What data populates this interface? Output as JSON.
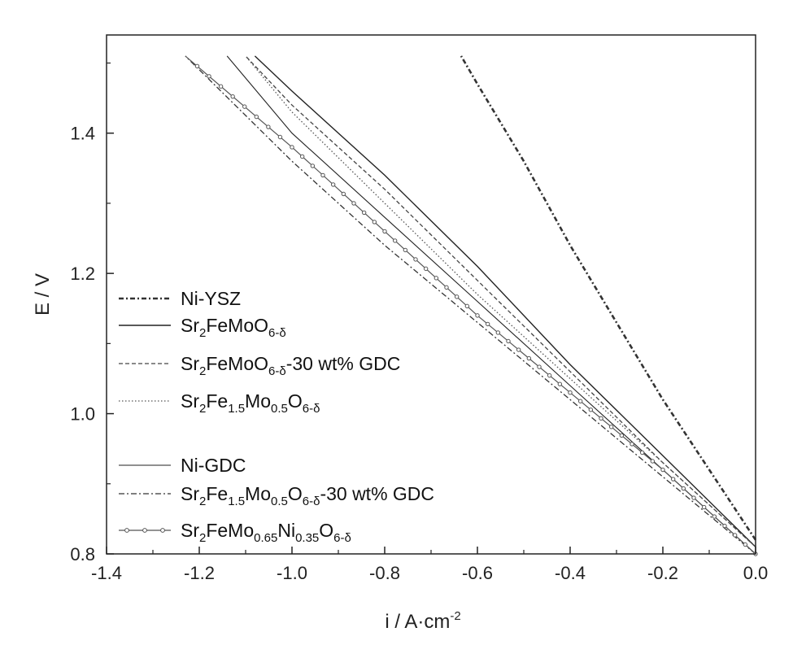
{
  "chart_data": {
    "type": "line",
    "xlabel": "i / A·cm",
    "xlabel_sup": "-2",
    "ylabel": "E / V",
    "xlim": [
      -1.4,
      0.0
    ],
    "ylim": [
      0.8,
      1.54
    ],
    "xticks": [
      -1.4,
      -1.2,
      -1.0,
      -0.8,
      -0.6,
      -0.4,
      -0.2,
      0.0
    ],
    "xtick_labels": [
      "-1.4",
      "-1.2",
      "-1.0",
      "-0.8",
      "-0.6",
      "-0.4",
      "-0.2",
      "0.0"
    ],
    "yticks": [
      0.8,
      1.0,
      1.2,
      1.4
    ],
    "ytick_labels": [
      "0.8",
      "1.0",
      "1.2",
      "1.4"
    ],
    "grid": false,
    "legend_position": "left-middle",
    "series": [
      {
        "name": "Ni-YSZ",
        "label_parts": [
          {
            "t": "Ni-YSZ"
          }
        ],
        "style": "dash-dot-bold",
        "color": "#333333",
        "x": [
          0.0,
          -0.1,
          -0.2,
          -0.3,
          -0.4,
          -0.5,
          -0.6,
          -0.635
        ],
        "y": [
          0.82,
          0.92,
          1.02,
          1.13,
          1.24,
          1.36,
          1.47,
          1.51
        ]
      },
      {
        "name": "Sr2FeMoO6-δ",
        "label_parts": [
          {
            "t": "Sr"
          },
          {
            "t": "2",
            "s": "sub"
          },
          {
            "t": "FeMoO"
          },
          {
            "t": "6-δ",
            "s": "sub"
          }
        ],
        "style": "solid",
        "color": "#222222",
        "x": [
          0.0,
          -0.2,
          -0.4,
          -0.6,
          -0.8,
          -1.0,
          -1.08
        ],
        "y": [
          0.81,
          0.94,
          1.07,
          1.21,
          1.34,
          1.46,
          1.51
        ]
      },
      {
        "name": "Sr2FeMoO6-δ-30 wt% GDC",
        "label_parts": [
          {
            "t": "Sr"
          },
          {
            "t": "2",
            "s": "sub"
          },
          {
            "t": "FeMoO"
          },
          {
            "t": "6-δ",
            "s": "sub"
          },
          {
            "t": "-30 wt% GDC"
          }
        ],
        "style": "dashed",
        "color": "#444444",
        "x": [
          0.0,
          -0.2,
          -0.4,
          -0.6,
          -0.8,
          -1.0,
          -1.1
        ],
        "y": [
          0.81,
          0.93,
          1.06,
          1.19,
          1.32,
          1.44,
          1.51
        ]
      },
      {
        "name": "Sr2Fe1.5Mo0.5O6-δ",
        "label_parts": [
          {
            "t": "Sr"
          },
          {
            "t": "2",
            "s": "sub"
          },
          {
            "t": "Fe"
          },
          {
            "t": "1.5",
            "s": "sub"
          },
          {
            "t": "Mo"
          },
          {
            "t": "0.5",
            "s": "sub"
          },
          {
            "t": "O"
          },
          {
            "t": "6-δ",
            "s": "sub"
          }
        ],
        "style": "dotted",
        "color": "#555555",
        "x": [
          0.0,
          -0.2,
          -0.4,
          -0.6,
          -0.8,
          -1.0,
          -1.1
        ],
        "y": [
          0.81,
          0.93,
          1.05,
          1.17,
          1.3,
          1.43,
          1.51
        ]
      },
      {
        "name": "Ni-GDC",
        "label_parts": [
          {
            "t": "Ni-GDC"
          }
        ],
        "style": "solid-thin",
        "color": "#222222",
        "x": [
          0.0,
          -0.2,
          -0.4,
          -0.6,
          -0.8,
          -1.0,
          -1.14
        ],
        "y": [
          0.8,
          0.92,
          1.04,
          1.16,
          1.28,
          1.4,
          1.51
        ]
      },
      {
        "name": "Sr2Fe1.5Mo0.5O6-δ-30 wt% GDC",
        "label_parts": [
          {
            "t": "Sr"
          },
          {
            "t": "2",
            "s": "sub"
          },
          {
            "t": "Fe"
          },
          {
            "t": "1.5",
            "s": "sub"
          },
          {
            "t": "Mo"
          },
          {
            "t": "0.5",
            "s": "sub"
          },
          {
            "t": "O"
          },
          {
            "t": "6-δ",
            "s": "sub"
          },
          {
            "t": "-30 wt% GDC"
          }
        ],
        "style": "dash-dot",
        "color": "#333333",
        "x": [
          0.0,
          -0.2,
          -0.4,
          -0.6,
          -0.8,
          -1.0,
          -1.23
        ],
        "y": [
          0.8,
          0.91,
          1.02,
          1.13,
          1.24,
          1.36,
          1.51
        ]
      },
      {
        "name": "Sr2FeMo0.65Ni0.35O6-δ",
        "label_parts": [
          {
            "t": "Sr"
          },
          {
            "t": "2",
            "s": "sub"
          },
          {
            "t": "FeMo"
          },
          {
            "t": "0.65",
            "s": "sub"
          },
          {
            "t": "Ni"
          },
          {
            "t": "0.35",
            "s": "sub"
          },
          {
            "t": "O"
          },
          {
            "t": "6-δ",
            "s": "sub"
          }
        ],
        "style": "solid-circles",
        "color": "#555555",
        "x": [
          0.0,
          -0.2,
          -0.4,
          -0.6,
          -0.8,
          -1.0,
          -1.23
        ],
        "y": [
          0.8,
          0.92,
          1.03,
          1.14,
          1.26,
          1.38,
          1.51
        ]
      }
    ]
  }
}
